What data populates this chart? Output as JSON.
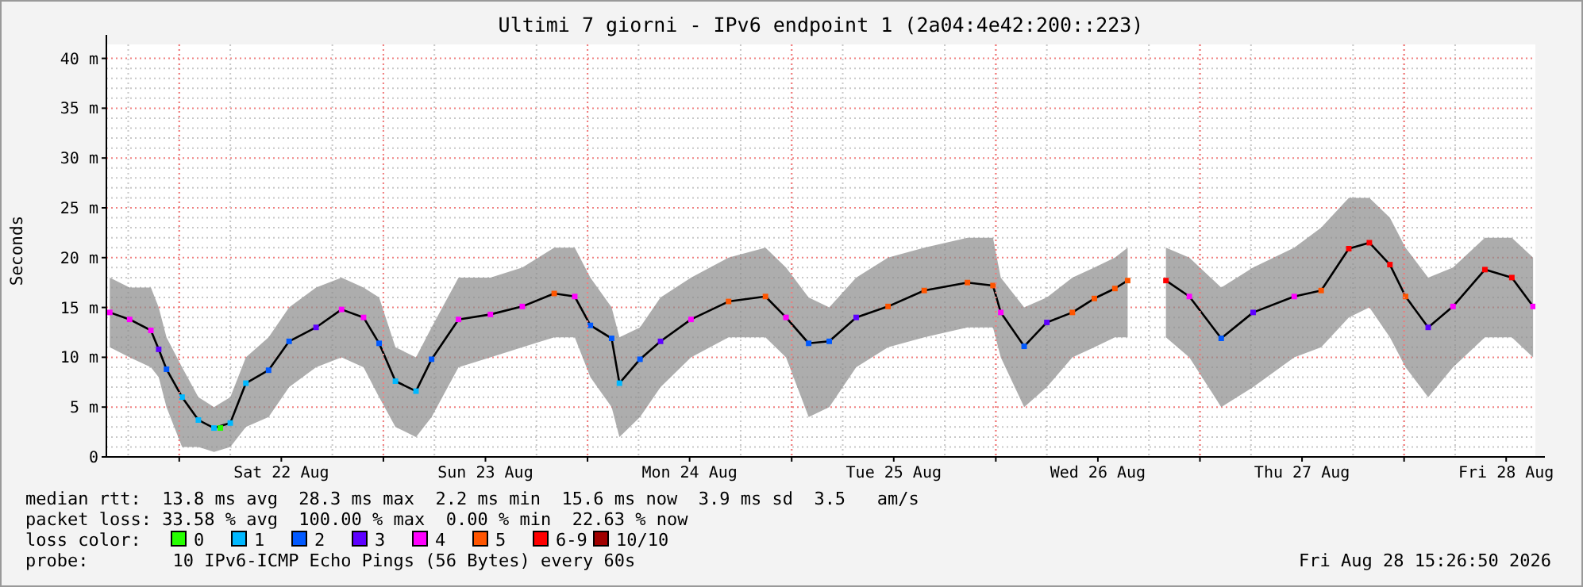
{
  "chart_data": {
    "type": "line",
    "title": "Ultimi 7 giorni - IPv6 endpoint 1 (2a04:4e42:200::223)",
    "ylabel": "Seconds",
    "legend_title": "loss color:",
    "legend": "bottom",
    "grid": true,
    "marker": "square",
    "xlim": [
      "2026-08-21T15:26",
      "2026-08-28T15:26"
    ],
    "xticks": [
      {
        "value": "2026-08-22T00:00",
        "label": null
      },
      {
        "value": "2026-08-22T12:00",
        "label": "Sat 22 Aug"
      },
      {
        "value": "2026-08-23T00:00",
        "label": null
      },
      {
        "value": "2026-08-23T12:00",
        "label": "Sun 23 Aug"
      },
      {
        "value": "2026-08-24T00:00",
        "label": null
      },
      {
        "value": "2026-08-24T12:00",
        "label": "Mon 24 Aug"
      },
      {
        "value": "2026-08-25T00:00",
        "label": null
      },
      {
        "value": "2026-08-25T12:00",
        "label": "Tue 25 Aug"
      },
      {
        "value": "2026-08-26T00:00",
        "label": null
      },
      {
        "value": "2026-08-26T12:00",
        "label": "Wed 26 Aug"
      },
      {
        "value": "2026-08-27T00:00",
        "label": null
      },
      {
        "value": "2026-08-27T12:00",
        "label": "Thu 27 Aug"
      },
      {
        "value": "2026-08-28T00:00",
        "label": null
      },
      {
        "value": "2026-08-28T12:00",
        "label": "Fri 28 Aug"
      }
    ],
    "ylim": [
      0,
      41.4
    ],
    "yticks": [
      0,
      {
        "value": 5,
        "label": "5 m"
      },
      {
        "value": 10,
        "label": "10 m"
      },
      {
        "value": 15,
        "label": "15 m"
      },
      {
        "value": 20,
        "label": "20 m"
      },
      {
        "value": 25,
        "label": "25 m"
      },
      {
        "value": 30,
        "label": "30 m"
      },
      {
        "value": 35,
        "label": "35 m"
      },
      {
        "value": 40,
        "label": "40 m"
      }
    ],
    "series": [
      {
        "color": "#000000",
        "marker": "none",
        "x": [
          "2026-08-21T15:50",
          "2026-08-21T18:10",
          "2026-08-21T20:40",
          "2026-08-21T21:35",
          "2026-08-21T22:30",
          "2026-08-22T00:20",
          "2026-08-22T02:15",
          "2026-08-22T04:05",
          "2026-08-22T06:00",
          "2026-08-22T07:50",
          "2026-08-22T10:30",
          "2026-08-22T12:55",
          "2026-08-22T16:05",
          "2026-08-22T19:05",
          "2026-08-22T21:40",
          "2026-08-22T23:30",
          "2026-08-23T01:25",
          "2026-08-23T03:50",
          "2026-08-23T05:40",
          "2026-08-23T08:50",
          "2026-08-23T12:35",
          "2026-08-23T16:20",
          "2026-08-23T20:05",
          "2026-08-23T22:30",
          "2026-08-24T00:20",
          "2026-08-24T02:50",
          "2026-08-24T03:45",
          "2026-08-24T06:10",
          "2026-08-24T08:35",
          "2026-08-24T12:10",
          "2026-08-24T16:35",
          "2026-08-24T20:55",
          "2026-08-24T23:20",
          "2026-08-25T02:00",
          "2026-08-25T04:25",
          "2026-08-25T07:35",
          "2026-08-25T11:20",
          "2026-08-25T15:35",
          "2026-08-25T20:40",
          "2026-08-25T23:40",
          "2026-08-26T00:35",
          "2026-08-26T03:20",
          "2026-08-26T06:00",
          "2026-08-26T09:00",
          "2026-08-26T11:35",
          "2026-08-26T14:00",
          "2026-08-26T15:30",
          "2026-08-26T17:45",
          "2026-08-26T20:00",
          "2026-08-26T22:45",
          "2026-08-27T02:30",
          "2026-08-27T06:15",
          "2026-08-27T11:05",
          "2026-08-27T14:15",
          "2026-08-27T17:30",
          "2026-08-27T19:55",
          "2026-08-27T22:20",
          "2026-08-28T00:10",
          "2026-08-28T02:50",
          "2026-08-28T05:45",
          "2026-08-28T09:30",
          "2026-08-28T12:40",
          "2026-08-28T15:10"
        ],
        "values": [
          14.5,
          13.8,
          12.7,
          10.8,
          8.8,
          6.0,
          3.7,
          2.9,
          3.4,
          7.4,
          8.7,
          11.6,
          13.0,
          14.8,
          14.0,
          11.4,
          7.6,
          6.6,
          9.8,
          13.8,
          14.3,
          15.1,
          16.4,
          16.1,
          13.2,
          11.9,
          7.4,
          9.8,
          11.6,
          13.8,
          15.6,
          16.1,
          14.0,
          11.4,
          11.6,
          14.0,
          15.1,
          16.7,
          17.5,
          17.2,
          14.5,
          11.1,
          13.5,
          14.5,
          15.9,
          16.9,
          17.7,
          null,
          17.7,
          16.1,
          11.9,
          14.5,
          16.1,
          16.7,
          20.9,
          21.5,
          19.3,
          16.1,
          13.0,
          15.1,
          18.8,
          18.0,
          15.1
        ],
        "lower": [
          11,
          10,
          9,
          8,
          5,
          1,
          1,
          0.5,
          1,
          3,
          4,
          7,
          9,
          10,
          9,
          6,
          3,
          2,
          4,
          9,
          10,
          11,
          12,
          12,
          8,
          5,
          2,
          4,
          7,
          10,
          12,
          12,
          10,
          4,
          5,
          9,
          11,
          12,
          13,
          13,
          10,
          5,
          7,
          10,
          11,
          12,
          12,
          null,
          12,
          10,
          5,
          7,
          10,
          11,
          14,
          15,
          12,
          9,
          6,
          9,
          12,
          12,
          10
        ],
        "upper": [
          18,
          17,
          17,
          15,
          12,
          9,
          6,
          5,
          6,
          10,
          12,
          15,
          17,
          18,
          17,
          16,
          11,
          10,
          13,
          18,
          18,
          19,
          21,
          21,
          18,
          15,
          12,
          13,
          16,
          18,
          20,
          21,
          19,
          16,
          15,
          18,
          20,
          21,
          22,
          22,
          18,
          15,
          16,
          18,
          19,
          20,
          21,
          null,
          21,
          20,
          17,
          19,
          21,
          23,
          26,
          26,
          24,
          21,
          18,
          19,
          22,
          22,
          20
        ]
      },
      {
        "type": "scatter",
        "name": "0",
        "color": "#26ff00",
        "x": [
          "2026-08-22T04:50"
        ],
        "values": [
          2.9
        ]
      },
      {
        "type": "scatter",
        "name": "1",
        "color": "#00b8ff",
        "x": [
          "2026-08-22T00:20",
          "2026-08-22T02:15",
          "2026-08-22T04:05",
          "2026-08-22T06:00",
          "2026-08-22T07:50",
          "2026-08-23T01:25",
          "2026-08-23T03:50",
          "2026-08-24T03:45"
        ],
        "values": [
          6.0,
          3.7,
          2.9,
          3.4,
          7.4,
          7.6,
          6.6,
          7.4
        ]
      },
      {
        "type": "scatter",
        "name": "2",
        "color": "#0059ff",
        "x": [
          "2026-08-21T22:30",
          "2026-08-22T10:30",
          "2026-08-22T12:55",
          "2026-08-22T23:30",
          "2026-08-23T05:40",
          "2026-08-24T00:20",
          "2026-08-24T02:50",
          "2026-08-24T06:10",
          "2026-08-25T02:00",
          "2026-08-25T04:25",
          "2026-08-26T03:20",
          "2026-08-27T02:30"
        ],
        "values": [
          8.8,
          8.7,
          11.6,
          11.4,
          9.8,
          13.2,
          11.9,
          9.8,
          11.4,
          11.6,
          11.1,
          11.9
        ]
      },
      {
        "type": "scatter",
        "name": "3",
        "color": "#5e00ff",
        "x": [
          "2026-08-21T21:35",
          "2026-08-22T16:05",
          "2026-08-24T08:35",
          "2026-08-25T07:35",
          "2026-08-26T06:00",
          "2026-08-27T06:15",
          "2026-08-28T02:50"
        ],
        "values": [
          10.8,
          13.0,
          11.6,
          14.0,
          13.5,
          14.5,
          13.0
        ]
      },
      {
        "type": "scatter",
        "name": "4",
        "color": "#ff00fe",
        "x": [
          "2026-08-21T15:50",
          "2026-08-21T18:10",
          "2026-08-21T20:40",
          "2026-08-22T19:05",
          "2026-08-22T21:40",
          "2026-08-23T08:50",
          "2026-08-23T12:35",
          "2026-08-23T16:20",
          "2026-08-23T22:30",
          "2026-08-24T12:10",
          "2026-08-24T23:20",
          "2026-08-26T00:35",
          "2026-08-26T22:45",
          "2026-08-27T11:05",
          "2026-08-28T05:45",
          "2026-08-28T15:10"
        ],
        "values": [
          14.5,
          13.8,
          12.7,
          14.8,
          14.0,
          13.8,
          14.3,
          15.1,
          16.1,
          13.8,
          14.0,
          14.5,
          16.1,
          16.1,
          15.1,
          15.1
        ]
      },
      {
        "type": "scatter",
        "name": "5",
        "color": "#ff5500",
        "x": [
          "2026-08-23T20:05",
          "2026-08-24T16:35",
          "2026-08-24T20:55",
          "2026-08-25T11:20",
          "2026-08-25T15:35",
          "2026-08-25T20:40",
          "2026-08-25T23:40",
          "2026-08-26T09:00",
          "2026-08-26T11:35",
          "2026-08-26T14:00",
          "2026-08-26T15:30",
          "2026-08-27T14:15",
          "2026-08-28T00:10"
        ],
        "values": [
          16.4,
          15.6,
          16.1,
          15.1,
          16.7,
          17.5,
          17.2,
          14.5,
          15.9,
          16.9,
          17.7,
          16.7,
          16.1
        ]
      },
      {
        "type": "scatter",
        "name": "6-9",
        "color": "#ff0000",
        "x": [
          "2026-08-26T20:00",
          "2026-08-27T17:30",
          "2026-08-27T19:55",
          "2026-08-27T22:20",
          "2026-08-28T09:30",
          "2026-08-28T12:40"
        ],
        "values": [
          17.7,
          20.9,
          21.5,
          19.3,
          18.8,
          18.0
        ]
      },
      {
        "type": "scatter",
        "name": "10/10",
        "color": "#a10000"
      }
    ],
    "annotations": [
      "median rtt:  13.8 ms avg  28.3 ms max  2.2 ms min  15.6 ms now  3.9 ms sd  3.5   am/s",
      "packet loss: 33.58 % avg  100.00 % max  0.00 % min  22.63 % now",
      "probe:        10 IPv6-ICMP Echo Pings (56 Bytes) every 60s",
      "Fri Aug 28 15:26:50 2026"
    ]
  }
}
